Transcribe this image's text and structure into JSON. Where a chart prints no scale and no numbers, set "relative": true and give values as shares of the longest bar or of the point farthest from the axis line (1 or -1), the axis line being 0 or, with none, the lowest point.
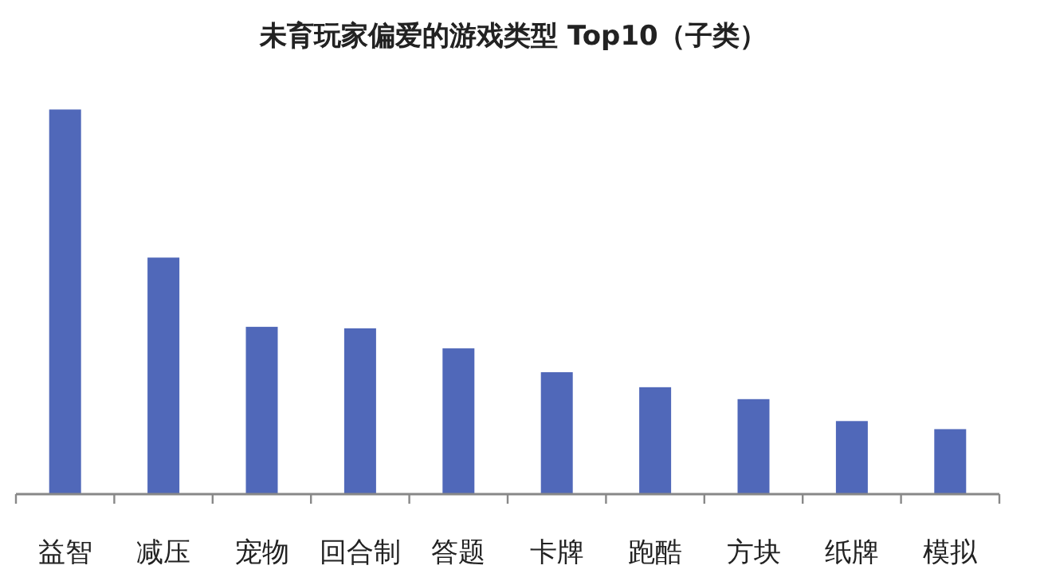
{
  "chart_data": {
    "type": "bar",
    "title": "未育玩家偏爱的游戏类型 Top10（子类）",
    "relative": true,
    "categories": [
      "益智",
      "减压",
      "宠物",
      "回合制",
      "答题",
      "卡牌",
      "跑酷",
      "方块",
      "纸牌",
      "模拟"
    ],
    "values": [
      1,
      0.615,
      0.435,
      0.431,
      0.379,
      0.317,
      0.278,
      0.247,
      0.19,
      0.169
    ],
    "color": "#5068b9"
  }
}
